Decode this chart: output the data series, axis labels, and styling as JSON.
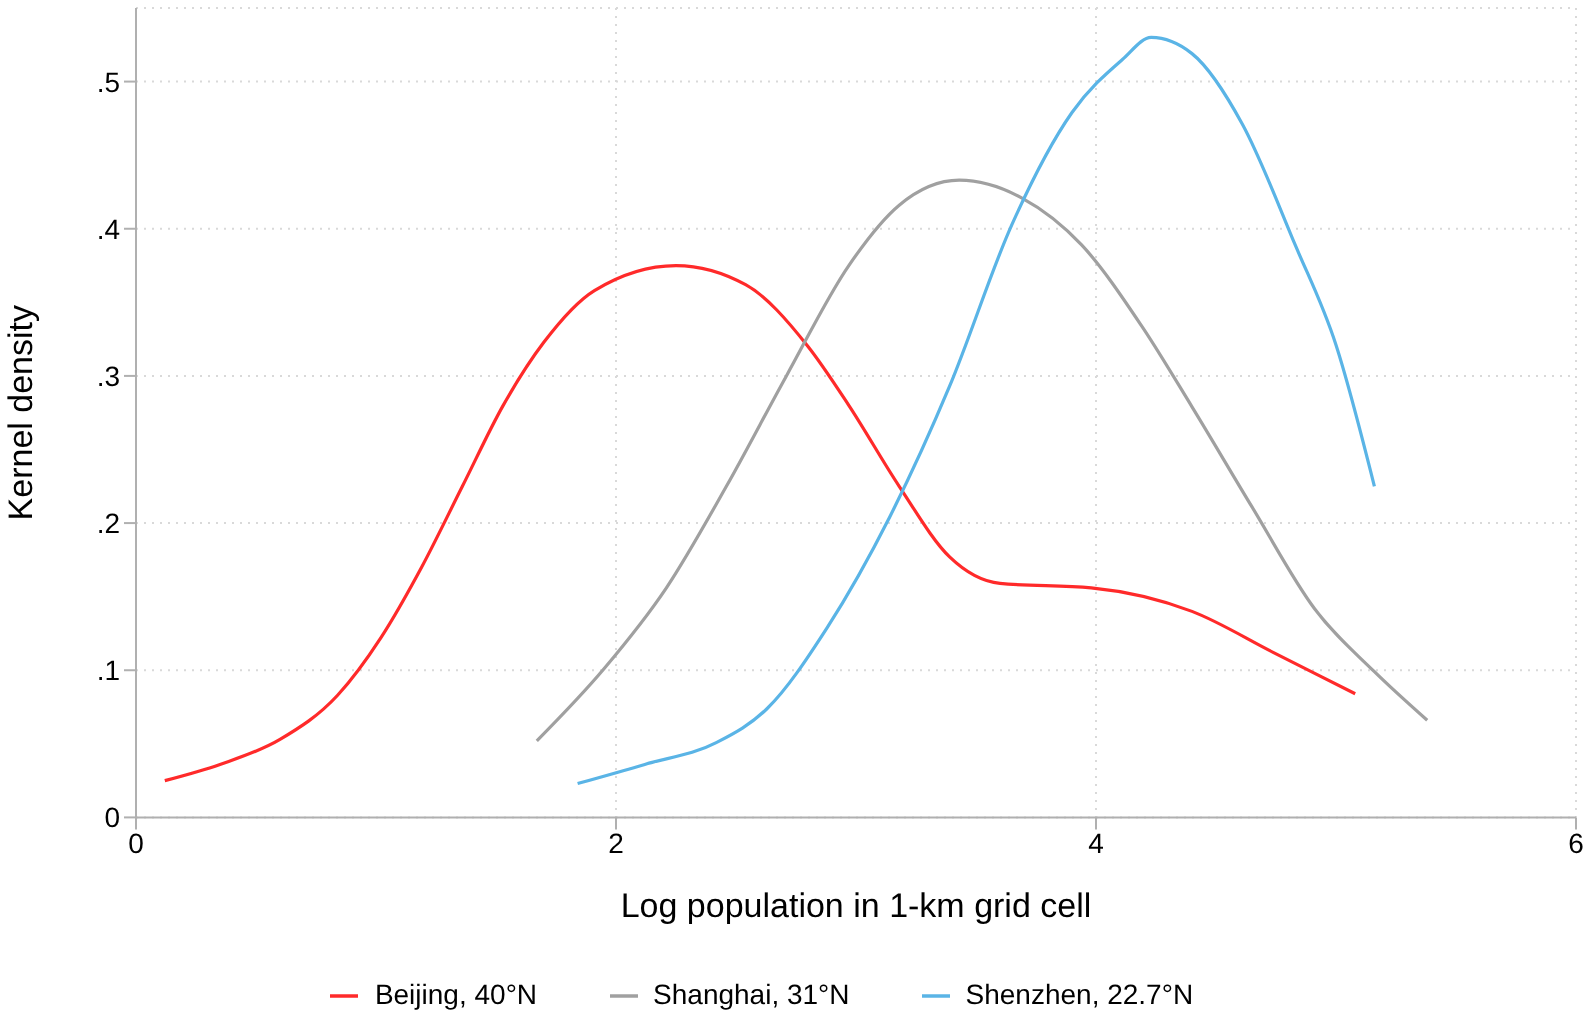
{
  "chart_data": {
    "type": "line",
    "xlabel": "Log population in 1-km grid cell",
    "ylabel": "Kernel density",
    "xlim": [
      0,
      6
    ],
    "xticks": [
      0,
      2,
      4,
      6
    ],
    "ylim": [
      0,
      0.55
    ],
    "yticks": [
      0,
      {
        "value": 0.1,
        "label": ".1"
      },
      {
        "value": 0.2,
        "label": ".2"
      },
      {
        "value": 0.3,
        "label": ".3"
      },
      {
        "value": 0.4,
        "label": ".4"
      },
      {
        "value": 0.5,
        "label": ".5"
      }
    ],
    "grid": true,
    "legend": "bottom",
    "marker": "none",
    "line_style": "solid",
    "series": [
      {
        "name": "Beijing, 40°N",
        "color": "#ff2a2a",
        "x": [
          0.12,
          0.35,
          0.6,
          0.84,
          1.02,
          1.19,
          1.36,
          1.53,
          1.7,
          1.91,
          2.25,
          2.54,
          2.8,
          2.97,
          3.18,
          3.39,
          3.6,
          3.98,
          4.4,
          4.74,
          5.08
        ],
        "values": [
          0.025,
          0.036,
          0.053,
          0.083,
          0.122,
          0.17,
          0.225,
          0.28,
          0.323,
          0.358,
          0.375,
          0.362,
          0.32,
          0.28,
          0.225,
          0.177,
          0.159,
          0.156,
          0.14,
          0.112,
          0.084
        ]
      },
      {
        "name": "Shanghai, 31°N",
        "color": "#a0a0a0",
        "x": [
          1.67,
          1.95,
          2.21,
          2.46,
          2.71,
          2.97,
          3.18,
          3.43,
          3.69,
          3.94,
          4.19,
          4.4,
          4.65,
          4.91,
          5.16,
          5.38
        ],
        "values": [
          0.052,
          0.101,
          0.156,
          0.225,
          0.3,
          0.375,
          0.416,
          0.433,
          0.421,
          0.389,
          0.334,
          0.279,
          0.211,
          0.142,
          0.099,
          0.066
        ]
      },
      {
        "name": "Shenzhen, 22.7°N",
        "color": "#5ab4e6",
        "x": [
          1.84,
          2.12,
          2.42,
          2.63,
          2.88,
          3.14,
          3.39,
          3.65,
          3.9,
          4.11,
          4.23,
          4.4,
          4.61,
          4.83,
          5.0,
          5.16
        ],
        "values": [
          0.023,
          0.036,
          0.051,
          0.074,
          0.129,
          0.204,
          0.293,
          0.403,
          0.479,
          0.515,
          0.53,
          0.519,
          0.471,
          0.389,
          0.321,
          0.225
        ]
      }
    ]
  }
}
